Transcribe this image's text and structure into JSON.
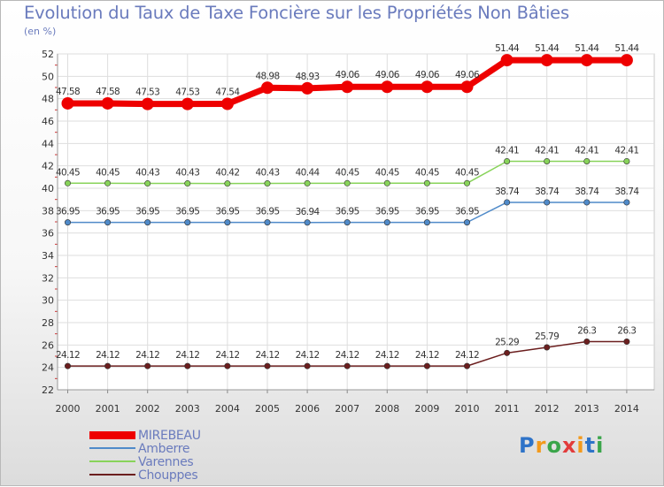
{
  "title": "Evolution du Taux de Taxe Foncière sur les Propriétés Non Bâties",
  "unit_label": "(en %)",
  "brand": {
    "letters": [
      "P",
      "r",
      "o",
      "x",
      "i",
      "t",
      "i"
    ],
    "colors": [
      "#2e73c8",
      "#f39a1c",
      "#3aa54a",
      "#e23b3b",
      "#f39a1c",
      "#2e73c8",
      "#3aa54a"
    ]
  },
  "chart_data": {
    "type": "line",
    "title": "Evolution du Taux de Taxe Foncière sur les Propriétés Non Bâties",
    "ylabel": "(en %)",
    "ylim": [
      22,
      52
    ],
    "yticks": [
      22,
      24,
      26,
      28,
      30,
      32,
      34,
      36,
      38,
      40,
      42,
      44,
      46,
      48,
      50,
      52
    ],
    "categories": [
      "2000",
      "2001",
      "2002",
      "2003",
      "2004",
      "2005",
      "2006",
      "2007",
      "2008",
      "2009",
      "2010",
      "2011",
      "2012",
      "2013",
      "2014"
    ],
    "series": [
      {
        "name": "MIREBEAU",
        "color": "#ee0000",
        "values": [
          47.58,
          47.58,
          47.53,
          47.53,
          47.54,
          48.98,
          48.93,
          49.06,
          49.06,
          49.06,
          49.06,
          51.44,
          51.44,
          51.44,
          51.44
        ],
        "labels": [
          "47.58",
          "47.58",
          "47.53",
          "47.53",
          "47.54",
          "48.98",
          "48.93",
          "49.06",
          "49.06",
          "49.06",
          "49.06",
          "51.44",
          "51.44",
          "51.44",
          "51.44"
        ]
      },
      {
        "name": "Amberre",
        "color": "#4f8ac9",
        "values": [
          36.95,
          36.95,
          36.95,
          36.95,
          36.95,
          36.95,
          36.94,
          36.95,
          36.95,
          36.95,
          36.95,
          38.74,
          38.74,
          38.74,
          38.74
        ],
        "labels": [
          "36.95",
          "36.95",
          "36.95",
          "36.95",
          "36.95",
          "36.95",
          "36.94",
          "36.95",
          "36.95",
          "36.95",
          "36.95",
          "38.74",
          "38.74",
          "38.74",
          "38.74"
        ]
      },
      {
        "name": "Varennes",
        "color": "#88d35a",
        "values": [
          40.45,
          40.45,
          40.43,
          40.43,
          40.42,
          40.43,
          40.44,
          40.45,
          40.45,
          40.45,
          40.45,
          42.41,
          42.41,
          42.41,
          42.41
        ],
        "labels": [
          "40.45",
          "40.45",
          "40.43",
          "40.43",
          "40.42",
          "40.43",
          "40.44",
          "40.45",
          "40.45",
          "40.45",
          "40.45",
          "42.41",
          "42.41",
          "42.41",
          "42.41"
        ]
      },
      {
        "name": "Chouppes",
        "color": "#6b1e1e",
        "values": [
          24.12,
          24.12,
          24.12,
          24.12,
          24.12,
          24.12,
          24.12,
          24.12,
          24.12,
          24.12,
          24.12,
          25.29,
          25.79,
          26.3,
          26.3
        ],
        "labels": [
          "24.12",
          "24.12",
          "24.12",
          "24.12",
          "24.12",
          "24.12",
          "24.12",
          "24.12",
          "24.12",
          "24.12",
          "24.12",
          "25.29",
          "25.79",
          "26.3",
          "26.3"
        ]
      }
    ]
  }
}
